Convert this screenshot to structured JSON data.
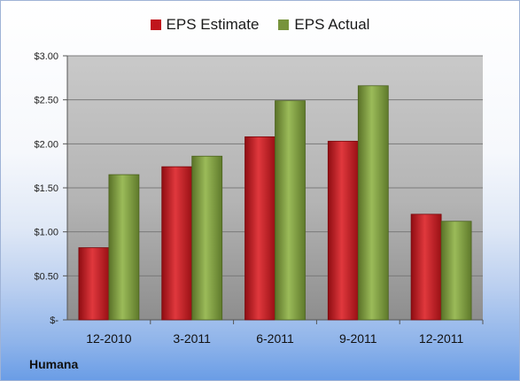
{
  "chart_data": {
    "type": "bar",
    "categories": [
      "12-2010",
      "3-2011",
      "6-2011",
      "9-2011",
      "12-2011"
    ],
    "series": [
      {
        "name": "EPS Estimate",
        "values": [
          0.82,
          1.74,
          2.08,
          2.03,
          1.2
        ],
        "color": "#c0161c"
      },
      {
        "name": "EPS Actual",
        "values": [
          1.65,
          1.86,
          2.49,
          2.66,
          1.12
        ],
        "color": "#77933c"
      }
    ],
    "ylim": [
      0,
      3.0
    ],
    "yticks": [
      0,
      0.5,
      1.0,
      1.5,
      2.0,
      2.5,
      3.0
    ],
    "ytick_labels": [
      "$-",
      "$0.50",
      "$1.00",
      "$1.50",
      "$2.00",
      "$2.50",
      "$3.00"
    ],
    "grid": true,
    "legend_position": "top-center"
  },
  "company": "Humana"
}
